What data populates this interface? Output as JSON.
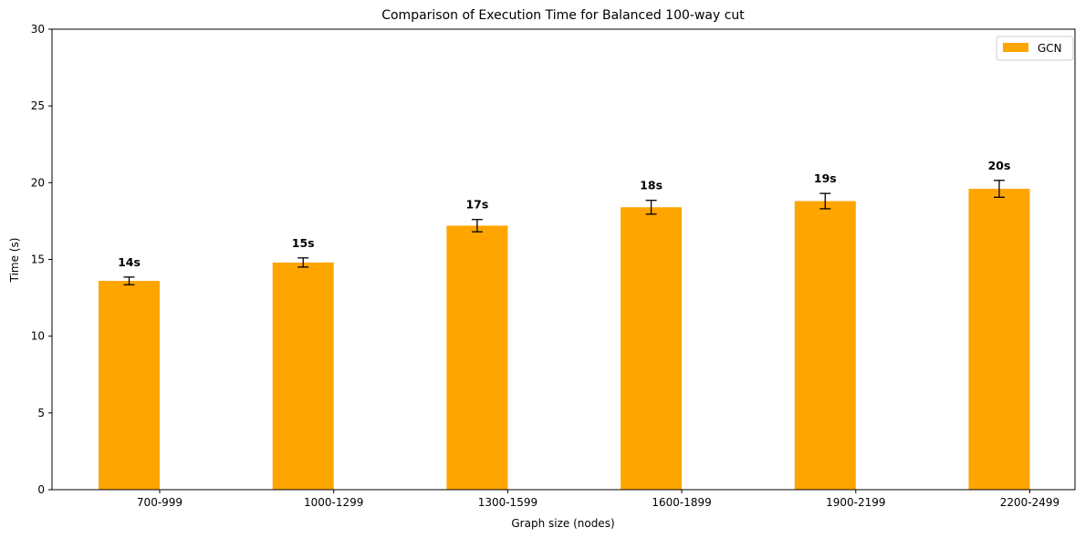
{
  "chart_data": {
    "type": "bar",
    "title": "Comparison of Execution Time for Balanced 100-way cut",
    "xlabel": "Graph size (nodes)",
    "ylabel": "Time (s)",
    "categories": [
      "700-999",
      "1000-1299",
      "1300-1599",
      "1600-1899",
      "1900-2199",
      "2200-2499"
    ],
    "series": [
      {
        "name": "GCN",
        "color": "#FFA500",
        "values": [
          13.6,
          14.8,
          17.2,
          18.4,
          18.8,
          19.6
        ],
        "errors": [
          0.25,
          0.3,
          0.4,
          0.45,
          0.5,
          0.55
        ],
        "value_labels": [
          "14s",
          "15s",
          "17s",
          "18s",
          "19s",
          "20s"
        ]
      }
    ],
    "ylim": [
      0,
      30
    ],
    "yticks": [
      0,
      5,
      10,
      15,
      20,
      25,
      30
    ],
    "grid": false,
    "legend_position": "top-right"
  }
}
